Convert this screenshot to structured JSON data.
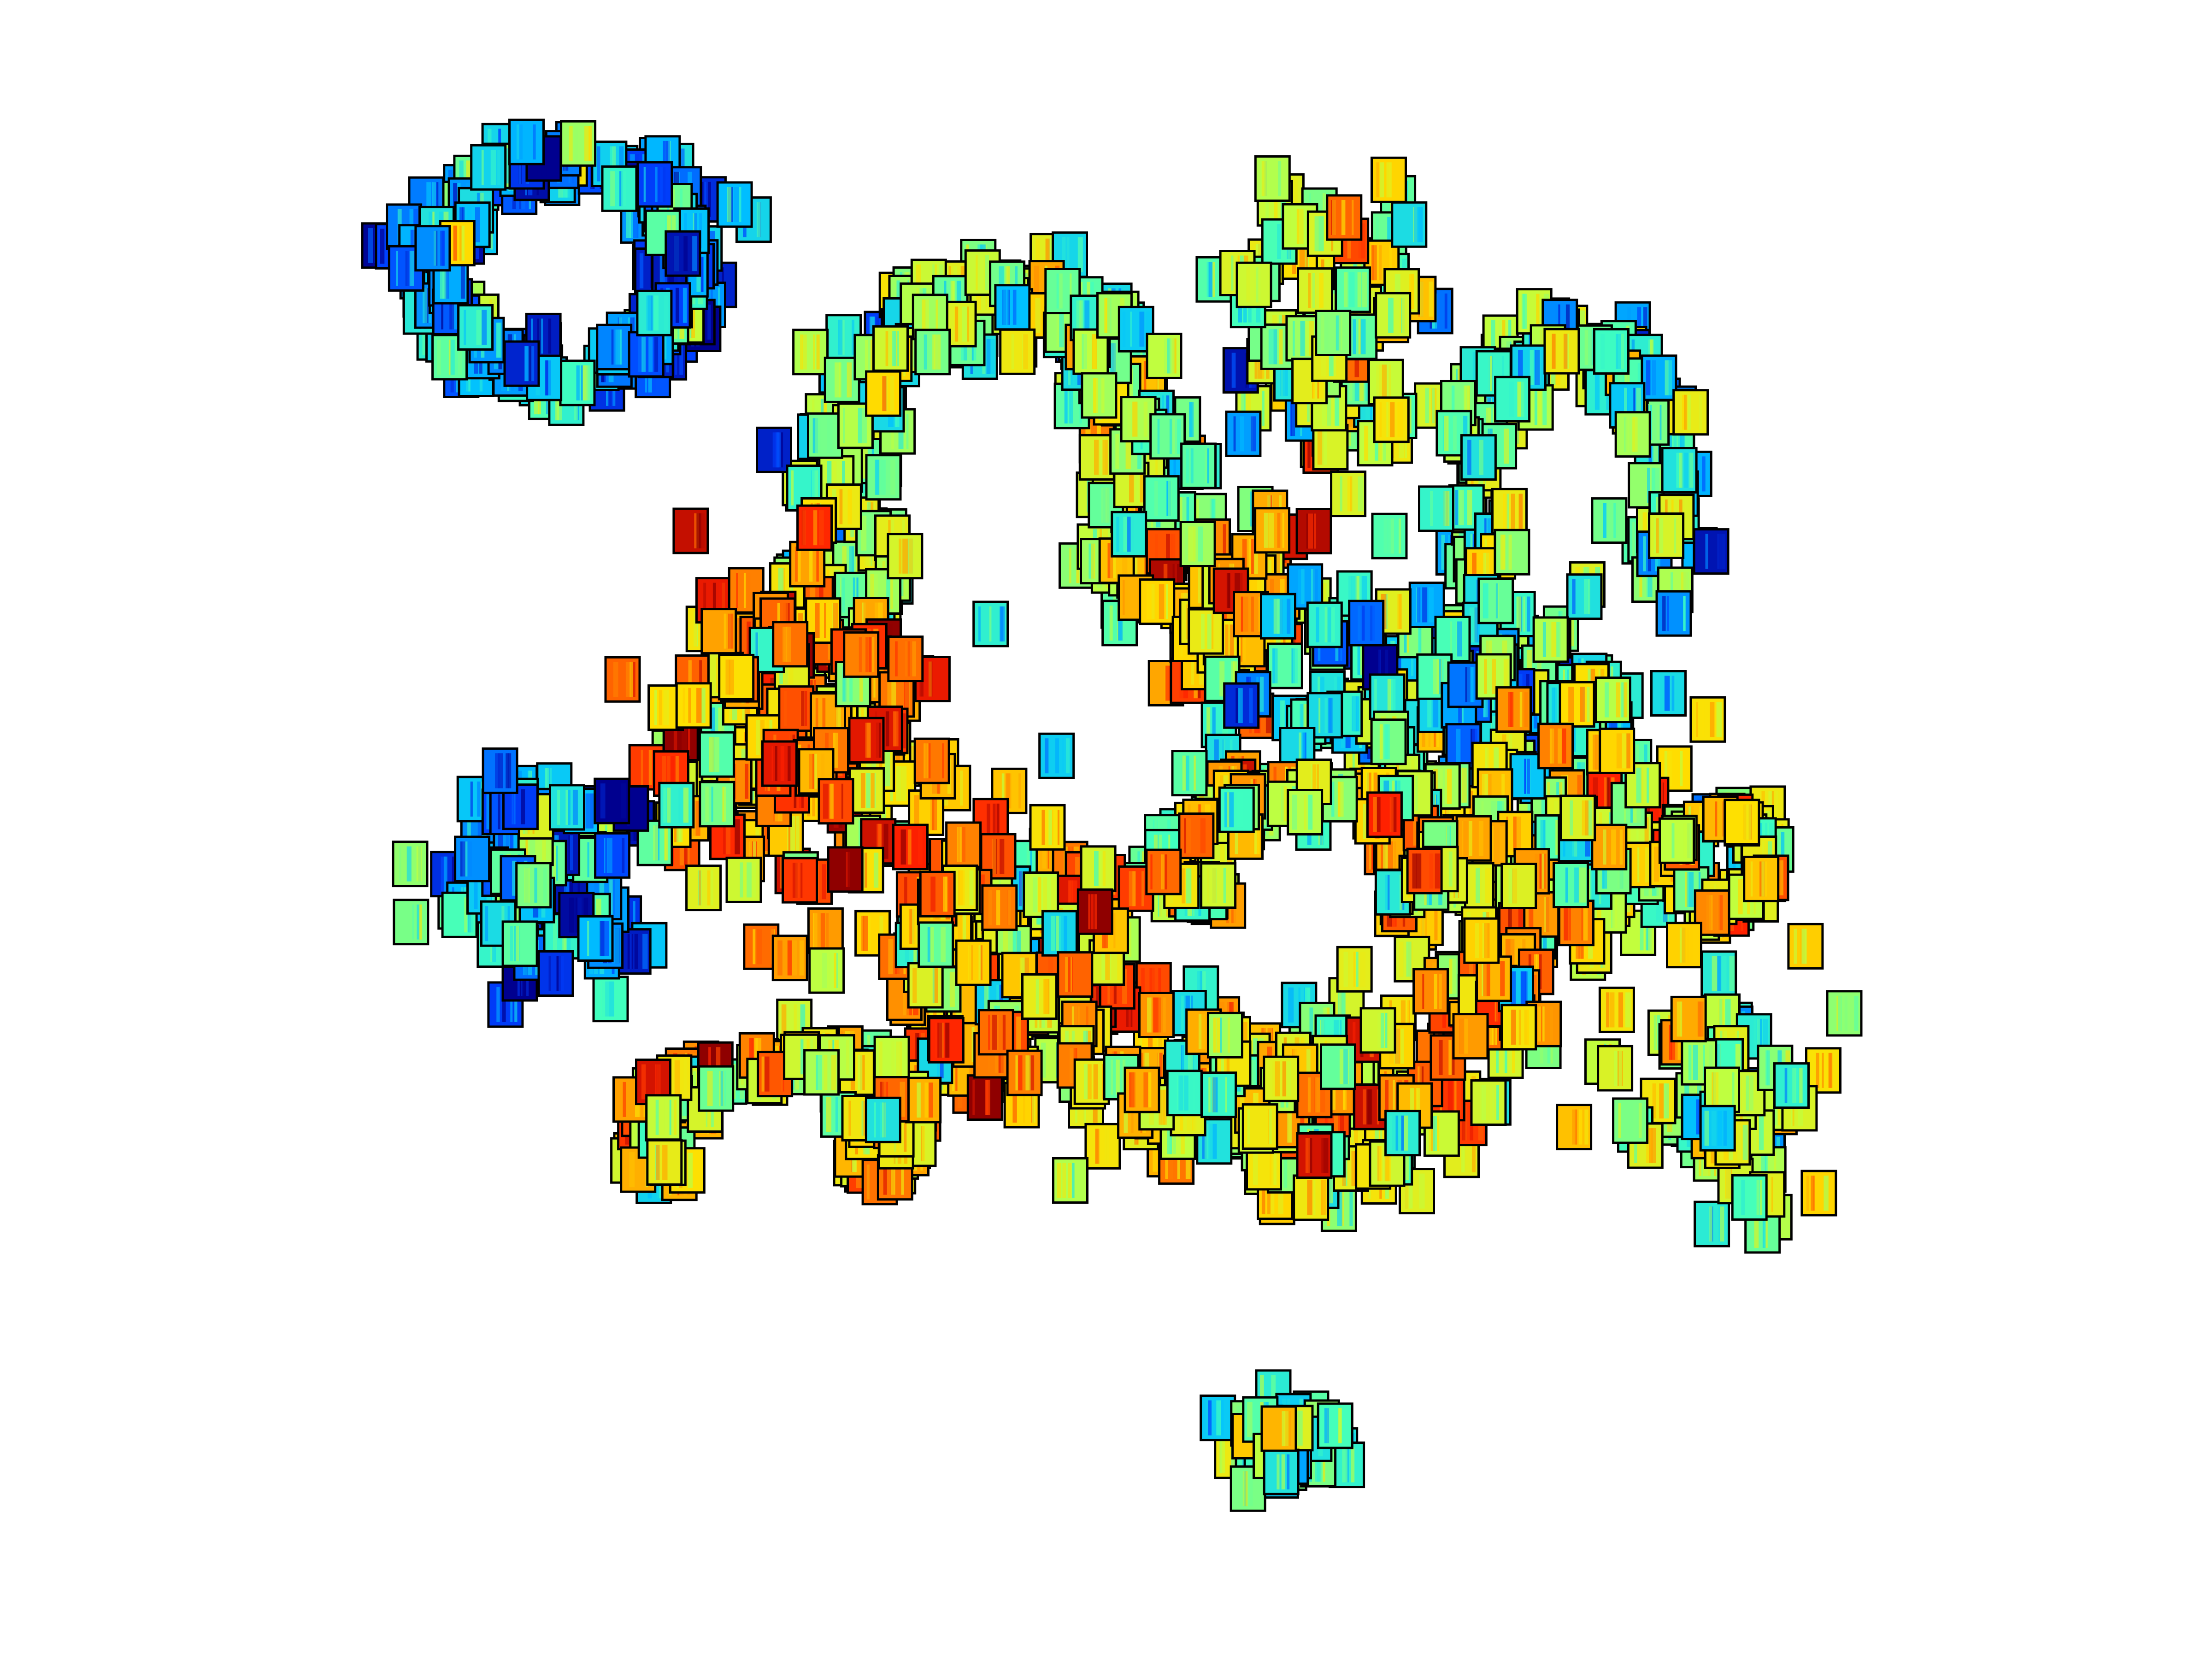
{
  "chart_data": {
    "type": "scatter",
    "title": "",
    "xlabel": "",
    "ylabel": "",
    "axes_visible": false,
    "grid": false,
    "legend": "none",
    "marker": "thumbnail-tile",
    "marker_border_color": "#000000",
    "colormap": "jet",
    "colormap_stops": [
      "#00008f",
      "#0040ff",
      "#00c0ff",
      "#40ffbf",
      "#bfff40",
      "#ffdf00",
      "#ff8000",
      "#ff2000",
      "#8f0000"
    ],
    "xlim": [
      0,
      1
    ],
    "ylim": [
      0,
      1
    ],
    "y_axis_direction": "down",
    "clusters": [
      {
        "id": "top-left-ring",
        "x": 0.255,
        "y": 0.16,
        "spread_x": 0.072,
        "spread_y": 0.08,
        "shape": "ring",
        "count": 190,
        "heat": 0.22
      },
      {
        "id": "top-center-arc",
        "x": 0.45,
        "y": 0.29,
        "spread_x": 0.09,
        "spread_y": 0.14,
        "shape": "arc",
        "count": 240,
        "heat": 0.45
      },
      {
        "id": "top-right-band",
        "x": 0.6,
        "y": 0.2,
        "spread_x": 0.04,
        "spread_y": 0.08,
        "shape": "blob",
        "count": 90,
        "heat": 0.5
      },
      {
        "id": "right-upper-arc",
        "x": 0.71,
        "y": 0.29,
        "spread_x": 0.06,
        "spread_y": 0.1,
        "shape": "arc",
        "count": 120,
        "heat": 0.42
      },
      {
        "id": "center-orange-core",
        "x": 0.555,
        "y": 0.37,
        "spread_x": 0.03,
        "spread_y": 0.045,
        "shape": "blob",
        "count": 70,
        "heat": 0.68
      },
      {
        "id": "center-right-mass",
        "x": 0.66,
        "y": 0.42,
        "spread_x": 0.08,
        "spread_y": 0.06,
        "shape": "blob",
        "count": 210,
        "heat": 0.36
      },
      {
        "id": "right-middle-band",
        "x": 0.69,
        "y": 0.52,
        "spread_x": 0.055,
        "spread_y": 0.07,
        "shape": "blob",
        "count": 110,
        "heat": 0.55
      },
      {
        "id": "center-arc-bottom",
        "x": 0.59,
        "y": 0.52,
        "spread_x": 0.07,
        "spread_y": 0.055,
        "shape": "arc",
        "count": 100,
        "heat": 0.55
      },
      {
        "id": "left-middle-orange",
        "x": 0.365,
        "y": 0.44,
        "spread_x": 0.065,
        "spread_y": 0.08,
        "shape": "blob",
        "count": 200,
        "heat": 0.7
      },
      {
        "id": "left-blue-cluster",
        "x": 0.245,
        "y": 0.53,
        "spread_x": 0.04,
        "spread_y": 0.055,
        "shape": "blob",
        "count": 120,
        "heat": 0.25
      },
      {
        "id": "center-lower-orange",
        "x": 0.45,
        "y": 0.58,
        "spread_x": 0.06,
        "spread_y": 0.07,
        "shape": "blob",
        "count": 220,
        "heat": 0.66
      },
      {
        "id": "bottom-left-curve",
        "x": 0.35,
        "y": 0.68,
        "spread_x": 0.07,
        "spread_y": 0.05,
        "shape": "arc",
        "count": 120,
        "heat": 0.62
      },
      {
        "id": "bottom-center-mass",
        "x": 0.58,
        "y": 0.66,
        "spread_x": 0.08,
        "spread_y": 0.05,
        "shape": "blob",
        "count": 200,
        "heat": 0.6
      },
      {
        "id": "right-small-ring",
        "x": 0.778,
        "y": 0.52,
        "spread_x": 0.026,
        "spread_y": 0.035,
        "shape": "ring",
        "count": 60,
        "heat": 0.6
      },
      {
        "id": "right-small-mid",
        "x": 0.668,
        "y": 0.605,
        "spread_x": 0.02,
        "spread_y": 0.028,
        "shape": "blob",
        "count": 40,
        "heat": 0.68
      },
      {
        "id": "right-lower-cluster",
        "x": 0.78,
        "y": 0.66,
        "spread_x": 0.035,
        "spread_y": 0.055,
        "shape": "blob",
        "count": 70,
        "heat": 0.5
      },
      {
        "id": "bottom-isolated",
        "x": 0.58,
        "y": 0.875,
        "spread_x": 0.022,
        "spread_y": 0.025,
        "shape": "blob",
        "count": 45,
        "heat": 0.4
      }
    ]
  }
}
